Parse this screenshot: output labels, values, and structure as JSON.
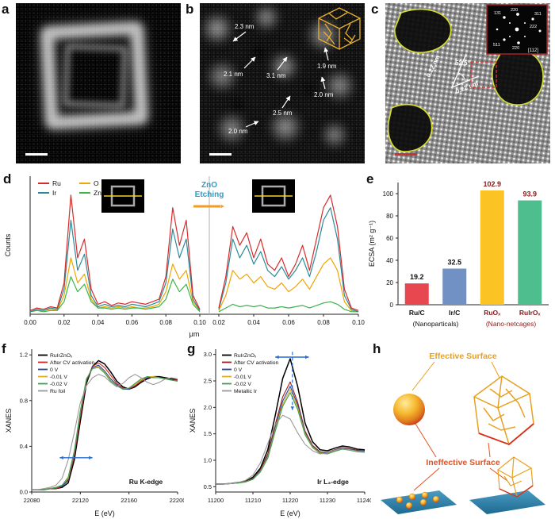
{
  "figure": {
    "panels": {
      "a": {
        "label": "a"
      },
      "b": {
        "label": "b",
        "annotations": [
          {
            "text": "2.3 nm"
          },
          {
            "text": "2.1 nm"
          },
          {
            "text": "3.1 nm"
          },
          {
            "text": "1.9 nm"
          },
          {
            "text": "2.0 nm"
          },
          {
            "text": "2.5 nm"
          },
          {
            "text": "2.0 nm"
          }
        ]
      },
      "c": {
        "label": "c",
        "angle_label": "52.5°",
        "d_spacing_1": "0.22 nm",
        "d_spacing_2": "0.22 nm",
        "fft_labels": [
          "131",
          "220",
          "311",
          "222",
          "511",
          "220"
        ],
        "zone_axis": "[112]"
      },
      "d": {
        "label": "d"
      },
      "e": {
        "label": "e"
      },
      "f": {
        "label": "f"
      },
      "g": {
        "label": "g"
      },
      "h": {
        "label": "h",
        "effective_label": "Effective Surface",
        "ineffective_label": "Ineffective Surface",
        "effective_color": "#e8a020",
        "ineffective_color": "#e85020"
      }
    }
  },
  "chart_data": [
    {
      "id": "eds_line_scan",
      "type": "line",
      "ylabel": "Counts",
      "xlabel": "μm",
      "annotation": {
        "line1": "ZnO",
        "line2": "Etching",
        "color": "#2e9bc4",
        "arrow_color": "#f59a23"
      },
      "legend": [
        {
          "label": "Ru",
          "color": "#d92b2b"
        },
        {
          "label": "O",
          "color": "#f0a500"
        },
        {
          "label": "Ir",
          "color": "#2b8a99"
        },
        {
          "label": "Zn",
          "color": "#3cb54a"
        }
      ],
      "segments": [
        {
          "x_start": 0.0,
          "x_end": 0.1,
          "x_ticks": [
            "0.00",
            "0.02",
            "0.04",
            "0.06",
            "0.08",
            "0.10"
          ],
          "series": [
            {
              "name": "O",
              "color": "#f0a500",
              "values": [
                0.02,
                0.03,
                0.03,
                0.04,
                0.03,
                0.15,
                0.45,
                0.25,
                0.32,
                0.12,
                0.05,
                0.06,
                0.05,
                0.06,
                0.05,
                0.06,
                0.05,
                0.05,
                0.06,
                0.08,
                0.18,
                0.4,
                0.28,
                0.35,
                0.1,
                0.03
              ]
            },
            {
              "name": "Zn",
              "color": "#3cb54a",
              "values": [
                0.02,
                0.03,
                0.02,
                0.03,
                0.03,
                0.1,
                0.3,
                0.18,
                0.24,
                0.1,
                0.05,
                0.05,
                0.04,
                0.05,
                0.04,
                0.05,
                0.05,
                0.04,
                0.05,
                0.06,
                0.12,
                0.28,
                0.18,
                0.24,
                0.08,
                0.02
              ]
            },
            {
              "name": "Ir",
              "color": "#2b8a99",
              "values": [
                0.02,
                0.04,
                0.03,
                0.05,
                0.04,
                0.2,
                0.75,
                0.35,
                0.48,
                0.15,
                0.06,
                0.08,
                0.06,
                0.07,
                0.06,
                0.08,
                0.07,
                0.06,
                0.08,
                0.1,
                0.25,
                0.68,
                0.45,
                0.6,
                0.12,
                0.03
              ]
            },
            {
              "name": "Ru",
              "color": "#d92b2b",
              "values": [
                0.03,
                0.05,
                0.04,
                0.06,
                0.05,
                0.25,
                0.95,
                0.45,
                0.6,
                0.2,
                0.08,
                0.1,
                0.07,
                0.09,
                0.08,
                0.1,
                0.09,
                0.08,
                0.1,
                0.12,
                0.3,
                0.85,
                0.55,
                0.75,
                0.15,
                0.04
              ]
            }
          ]
        },
        {
          "x_start": 0.02,
          "x_end": 0.1,
          "x_ticks": [
            "0.02",
            "0.04",
            "0.06",
            "0.08",
            "0.10"
          ],
          "series": [
            {
              "name": "O",
              "color": "#f0a500",
              "values": [
                0.03,
                0.15,
                0.35,
                0.28,
                0.32,
                0.25,
                0.3,
                0.22,
                0.2,
                0.25,
                0.18,
                0.22,
                0.28,
                0.2,
                0.3,
                0.4,
                0.45,
                0.35,
                0.1,
                0.03,
                0.02
              ]
            },
            {
              "name": "Zn",
              "color": "#3cb54a",
              "values": [
                0.02,
                0.05,
                0.08,
                0.06,
                0.07,
                0.06,
                0.07,
                0.05,
                0.05,
                0.06,
                0.05,
                0.06,
                0.07,
                0.05,
                0.07,
                0.09,
                0.1,
                0.08,
                0.04,
                0.02,
                0.02
              ]
            },
            {
              "name": "Ir",
              "color": "#2b8a99",
              "values": [
                0.04,
                0.25,
                0.6,
                0.45,
                0.55,
                0.4,
                0.5,
                0.35,
                0.3,
                0.38,
                0.28,
                0.35,
                0.45,
                0.3,
                0.5,
                0.75,
                0.85,
                0.6,
                0.15,
                0.04,
                0.02
              ]
            },
            {
              "name": "Ru",
              "color": "#d92b2b",
              "values": [
                0.05,
                0.3,
                0.7,
                0.55,
                0.65,
                0.45,
                0.6,
                0.4,
                0.35,
                0.45,
                0.3,
                0.4,
                0.55,
                0.35,
                0.6,
                0.85,
                0.95,
                0.7,
                0.2,
                0.05,
                0.03
              ]
            }
          ]
        }
      ]
    },
    {
      "id": "ecsa_bar",
      "type": "bar",
      "ylabel": "ECSA (m² g⁻¹)",
      "ylim": [
        0,
        110
      ],
      "y_ticks": [
        0,
        20,
        40,
        60,
        80,
        100
      ],
      "categories": [
        "Ru/C",
        "Ir/C",
        "RuOₓ",
        "RuIrOₓ"
      ],
      "values": [
        19.2,
        32.5,
        102.9,
        93.9
      ],
      "bar_colors": [
        "#e8474f",
        "#7191c4",
        "#fbc324",
        "#4fbe8e"
      ],
      "label_colors": [
        "#111111",
        "#111111",
        "#8b1a1a",
        "#8b1a1a"
      ],
      "category_colors": [
        "#111111",
        "#111111",
        "#8b1a1a",
        "#8b1a1a"
      ],
      "group_labels": [
        {
          "text": "(Nanoparticals)",
          "color": "#111111"
        },
        {
          "text": "(Nano-netcages)",
          "color": "#8b1a1a"
        }
      ]
    },
    {
      "id": "ru_xanes",
      "type": "line",
      "xlabel": "E (eV)",
      "ylabel": "XANES",
      "edge_label": "Ru K-edge",
      "xlim": [
        22080,
        22200
      ],
      "ylim": [
        0,
        1.25
      ],
      "x_ticks": [
        22080,
        22120,
        22160,
        22200
      ],
      "y_ticks": [
        "0.0",
        "0.4",
        "0.8",
        "1.2"
      ],
      "x_step": 5,
      "arrow": {
        "y": 0.3,
        "x1": 22103,
        "x2": 22130,
        "color": "#2a6fd4"
      },
      "series": [
        {
          "name": "RuIrZnOₓ",
          "color": "#000000",
          "values": [
            0.02,
            0.02,
            0.02,
            0.03,
            0.03,
            0.04,
            0.08,
            0.28,
            0.62,
            0.95,
            1.1,
            1.15,
            1.12,
            1.05,
            0.97,
            0.92,
            0.9,
            0.92,
            0.96,
            0.99,
            1.01,
            1.01,
            1.0,
            0.99,
            0.98
          ]
        },
        {
          "name": "After CV activation",
          "color": "#cc2a2a",
          "values": [
            0.02,
            0.02,
            0.02,
            0.03,
            0.03,
            0.05,
            0.1,
            0.32,
            0.66,
            0.97,
            1.1,
            1.13,
            1.09,
            1.02,
            0.95,
            0.91,
            0.9,
            0.93,
            0.97,
            1.0,
            1.01,
            1.0,
            0.99,
            0.98,
            0.98
          ]
        },
        {
          "name": "0 V",
          "color": "#27459f",
          "values": [
            0.02,
            0.02,
            0.02,
            0.03,
            0.04,
            0.05,
            0.11,
            0.34,
            0.69,
            0.98,
            1.09,
            1.11,
            1.06,
            0.99,
            0.94,
            0.9,
            0.9,
            0.94,
            0.98,
            1.0,
            1.01,
            1.0,
            0.99,
            0.98,
            0.97
          ]
        },
        {
          "name": "-0.01 V",
          "color": "#e0b020",
          "values": [
            0.02,
            0.02,
            0.02,
            0.03,
            0.04,
            0.06,
            0.12,
            0.35,
            0.7,
            0.99,
            1.08,
            1.1,
            1.05,
            0.98,
            0.93,
            0.9,
            0.91,
            0.94,
            0.98,
            1.01,
            1.01,
            1.0,
            0.99,
            0.98,
            0.97
          ]
        },
        {
          "name": "-0.02 V",
          "color": "#3f9f55",
          "values": [
            0.02,
            0.02,
            0.02,
            0.03,
            0.04,
            0.06,
            0.13,
            0.36,
            0.71,
            0.99,
            1.08,
            1.09,
            1.04,
            0.97,
            0.93,
            0.9,
            0.91,
            0.95,
            0.99,
            1.01,
            1.0,
            1.0,
            0.99,
            0.98,
            0.97
          ]
        },
        {
          "name": "Ru foil",
          "color": "#9a9a9a",
          "values": [
            0.02,
            0.02,
            0.03,
            0.04,
            0.06,
            0.12,
            0.28,
            0.52,
            0.78,
            0.93,
            1.0,
            1.03,
            1.01,
            0.96,
            0.92,
            0.95,
            1.0,
            1.03,
            1.0,
            0.96,
            0.94,
            0.96,
            0.99,
            1.0,
            0.99
          ]
        }
      ]
    },
    {
      "id": "ir_xanes",
      "type": "line",
      "xlabel": "E (eV)",
      "ylabel": "XANES",
      "edge_label": "Ir L₃-edge",
      "xlim": [
        11200,
        11240
      ],
      "ylim": [
        0.4,
        3.1
      ],
      "x_ticks": [
        11200,
        11210,
        11220,
        11230,
        11240
      ],
      "y_ticks": [
        "0.5",
        "1.0",
        "1.5",
        "2.0",
        "2.5",
        "3.0"
      ],
      "x_step": 2,
      "arrow": {
        "y": 2.95,
        "x1": 11216,
        "x2": 11225,
        "color": "#2a6fd4"
      },
      "vline": {
        "x": 11220.6,
        "y1": 1.95,
        "y2": 3.05,
        "color": "#2a6fd4"
      },
      "series": [
        {
          "name": "RuIrZnOₓ",
          "color": "#000000",
          "values": [
            0.55,
            0.55,
            0.56,
            0.58,
            0.6,
            0.68,
            0.85,
            1.2,
            1.85,
            2.55,
            2.92,
            2.4,
            1.7,
            1.35,
            1.2,
            1.18,
            1.23,
            1.27,
            1.25,
            1.21,
            1.2
          ]
        },
        {
          "name": "After CV activation",
          "color": "#9b1f1f",
          "values": [
            0.55,
            0.55,
            0.56,
            0.57,
            0.6,
            0.66,
            0.82,
            1.12,
            1.68,
            2.2,
            2.48,
            2.1,
            1.55,
            1.28,
            1.16,
            1.15,
            1.2,
            1.24,
            1.22,
            1.19,
            1.18
          ]
        },
        {
          "name": "0 V",
          "color": "#27459f",
          "values": [
            0.55,
            0.55,
            0.56,
            0.57,
            0.59,
            0.65,
            0.8,
            1.08,
            1.62,
            2.12,
            2.4,
            2.05,
            1.52,
            1.26,
            1.15,
            1.14,
            1.19,
            1.23,
            1.21,
            1.18,
            1.17
          ]
        },
        {
          "name": "-0.01 V",
          "color": "#e0b020",
          "values": [
            0.55,
            0.55,
            0.56,
            0.57,
            0.59,
            0.64,
            0.79,
            1.06,
            1.58,
            2.06,
            2.34,
            2.0,
            1.5,
            1.25,
            1.14,
            1.13,
            1.18,
            1.22,
            1.2,
            1.17,
            1.16
          ]
        },
        {
          "name": "-0.02 V",
          "color": "#3f9f55",
          "values": [
            0.55,
            0.55,
            0.56,
            0.57,
            0.59,
            0.64,
            0.78,
            1.04,
            1.55,
            2.02,
            2.28,
            1.96,
            1.48,
            1.24,
            1.13,
            1.12,
            1.17,
            1.21,
            1.19,
            1.16,
            1.15
          ]
        },
        {
          "name": "Metallic Ir",
          "color": "#9a9a9a",
          "values": [
            0.55,
            0.55,
            0.56,
            0.58,
            0.62,
            0.72,
            0.95,
            1.32,
            1.68,
            1.85,
            1.78,
            1.52,
            1.3,
            1.18,
            1.12,
            1.14,
            1.19,
            1.22,
            1.2,
            1.17,
            1.16
          ]
        }
      ]
    }
  ]
}
